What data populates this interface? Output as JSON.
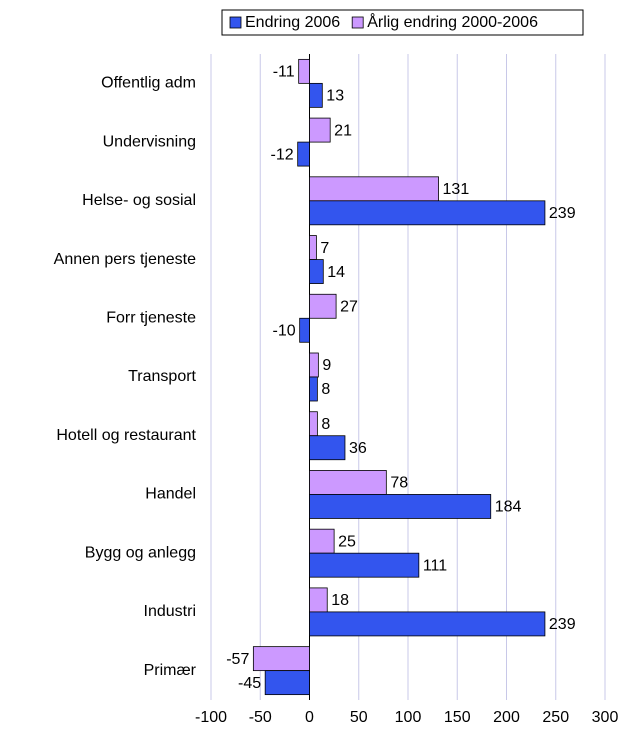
{
  "chart_data": {
    "type": "barh",
    "categories": [
      "Offentlig adm",
      "Undervisning",
      "Helse- og sosial",
      "Annen pers tjeneste",
      "Forr tjeneste",
      "Transport",
      "Hotell og restaurant",
      "Handel",
      "Bygg og anlegg",
      "Industri",
      "Primær"
    ],
    "series": [
      {
        "name": "Endring 2006",
        "color": "#3355ee",
        "values": [
          13,
          -12,
          239,
          14,
          -10,
          8,
          36,
          184,
          111,
          239,
          -45
        ]
      },
      {
        "name": "Årlig endring 2000-2006",
        "color": "#cc99ff",
        "values": [
          -11,
          21,
          131,
          7,
          27,
          9,
          8,
          78,
          25,
          18,
          -57
        ]
      }
    ],
    "xlim": [
      -100,
      300
    ],
    "xticks": [
      -100,
      -50,
      0,
      50,
      100,
      150,
      200,
      250,
      300
    ],
    "grid": true,
    "legend": "top"
  }
}
